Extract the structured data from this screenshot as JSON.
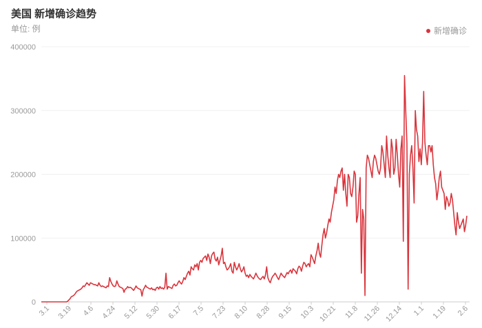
{
  "title": "美国 新增确诊趋势",
  "subtitle": "单位: 例",
  "colors": {
    "series": "#d9333b",
    "grid": "#f0f0f0",
    "axis": "#cccccc"
  },
  "chart_data": {
    "type": "line",
    "title": "美国 新增确诊趋势",
    "ylabel": "单位: 例",
    "ylim": [
      0,
      400000
    ],
    "y_ticks": [
      0,
      100000,
      200000,
      300000,
      400000
    ],
    "x_tick_labels": [
      "3.1",
      "3.19",
      "4.6",
      "4.24",
      "5.12",
      "5.30",
      "6.17",
      "7.5",
      "7.23",
      "8.10",
      "8.28",
      "9.15",
      "10.3",
      "10.21",
      "11.8",
      "11.26",
      "12.14",
      "1.1",
      "1.19",
      "2.6"
    ],
    "legend_position": "top-right",
    "grid": true,
    "series": [
      {
        "name": "新增确诊",
        "values": [
          0,
          0,
          0,
          0,
          0,
          0,
          0,
          0,
          0,
          0,
          0,
          0,
          0,
          0,
          0,
          0,
          0,
          0,
          0,
          0,
          0,
          0,
          1000,
          3000,
          5000,
          8000,
          9000,
          10000,
          12000,
          15000,
          17000,
          18000,
          19000,
          20000,
          22000,
          25000,
          24000,
          27000,
          30000,
          28000,
          26000,
          30000,
          29000,
          28000,
          27000,
          27000,
          26000,
          25000,
          30000,
          26000,
          24000,
          25000,
          24000,
          23000,
          22000,
          25000,
          24000,
          38000,
          32000,
          28000,
          25000,
          24000,
          25000,
          33000,
          28000,
          24000,
          23000,
          22000,
          21000,
          15000,
          20000,
          21000,
          24000,
          22000,
          23000,
          22000,
          20000,
          18000,
          21000,
          25000,
          22000,
          21000,
          20000,
          19000,
          9000,
          19000,
          22000,
          26000,
          23000,
          22000,
          21000,
          20000,
          22000,
          19000,
          20000,
          18000,
          22000,
          23000,
          20000,
          24000,
          21000,
          22000,
          20000,
          23000,
          45000,
          20000,
          24000,
          23000,
          22000,
          21000,
          26000,
          28000,
          25000,
          26000,
          30000,
          33000,
          30000,
          28000,
          32000,
          38000,
          35000,
          40000,
          45000,
          48000,
          42000,
          55000,
          52000,
          50000,
          58000,
          55000,
          60000,
          50000,
          62000,
          65000,
          62000,
          68000,
          70000,
          72000,
          65000,
          75000,
          70000,
          60000,
          72000,
          76000,
          78000,
          67000,
          64000,
          70000,
          58000,
          65000,
          72000,
          84000,
          60000,
          62000,
          55000,
          50000,
          52000,
          55000,
          60000,
          48000,
          45000,
          62000,
          55000,
          50000,
          54000,
          60000,
          52000,
          47000,
          50000,
          55000,
          45000,
          40000,
          42000,
          38000,
          43000,
          40000,
          38000,
          36000,
          40000,
          45000,
          41000,
          38000,
          36000,
          35000,
          38000,
          40000,
          36000,
          42000,
          55000,
          38000,
          33000,
          30000,
          36000,
          40000,
          42000,
          45000,
          42000,
          38000,
          35000,
          40000,
          45000,
          42000,
          40000,
          38000,
          42000,
          46000,
          44000,
          48000,
          50000,
          45000,
          52000,
          50000,
          48000,
          44000,
          52000,
          56000,
          54000,
          48000,
          56000,
          62000,
          60000,
          55000,
          58000,
          60000,
          55000,
          74000,
          70000,
          65000,
          60000,
          72000,
          80000,
          92000,
          76000,
          70000,
          88000,
          105000,
          115000,
          100000,
          108000,
          120000,
          130000,
          125000,
          140000,
          150000,
          160000,
          180000,
          170000,
          190000,
          200000,
          195000,
          205000,
          210000,
          175000,
          200000,
          170000,
          150000,
          200000,
          195000,
          170000,
          165000,
          180000,
          205000,
          200000,
          125000,
          135000,
          170000,
          195000,
          45000,
          145000,
          130000,
          10000,
          210000,
          230000,
          225000,
          215000,
          205000,
          195000,
          220000,
          230000,
          225000,
          215000,
          205000,
          200000,
          210000,
          245000,
          235000,
          215000,
          195000,
          260000,
          230000,
          210000,
          195000,
          255000,
          240000,
          200000,
          210000,
          255000,
          230000,
          200000,
          180000,
          240000,
          260000,
          95000,
          355000,
          300000,
          250000,
          20000,
          200000,
          230000,
          245000,
          210000,
          155000,
          300000,
          270000,
          260000,
          220000,
          240000,
          215000,
          250000,
          330000,
          250000,
          230000,
          215000,
          245000,
          245000,
          235000,
          245000,
          215000,
          195000,
          185000,
          160000,
          175000,
          195000,
          205000,
          180000,
          175000,
          170000,
          145000,
          165000,
          160000,
          150000,
          155000,
          170000,
          160000,
          140000,
          120000,
          105000,
          140000,
          125000,
          115000,
          120000,
          125000,
          130000,
          110000,
          120000,
          135000
        ]
      }
    ]
  }
}
